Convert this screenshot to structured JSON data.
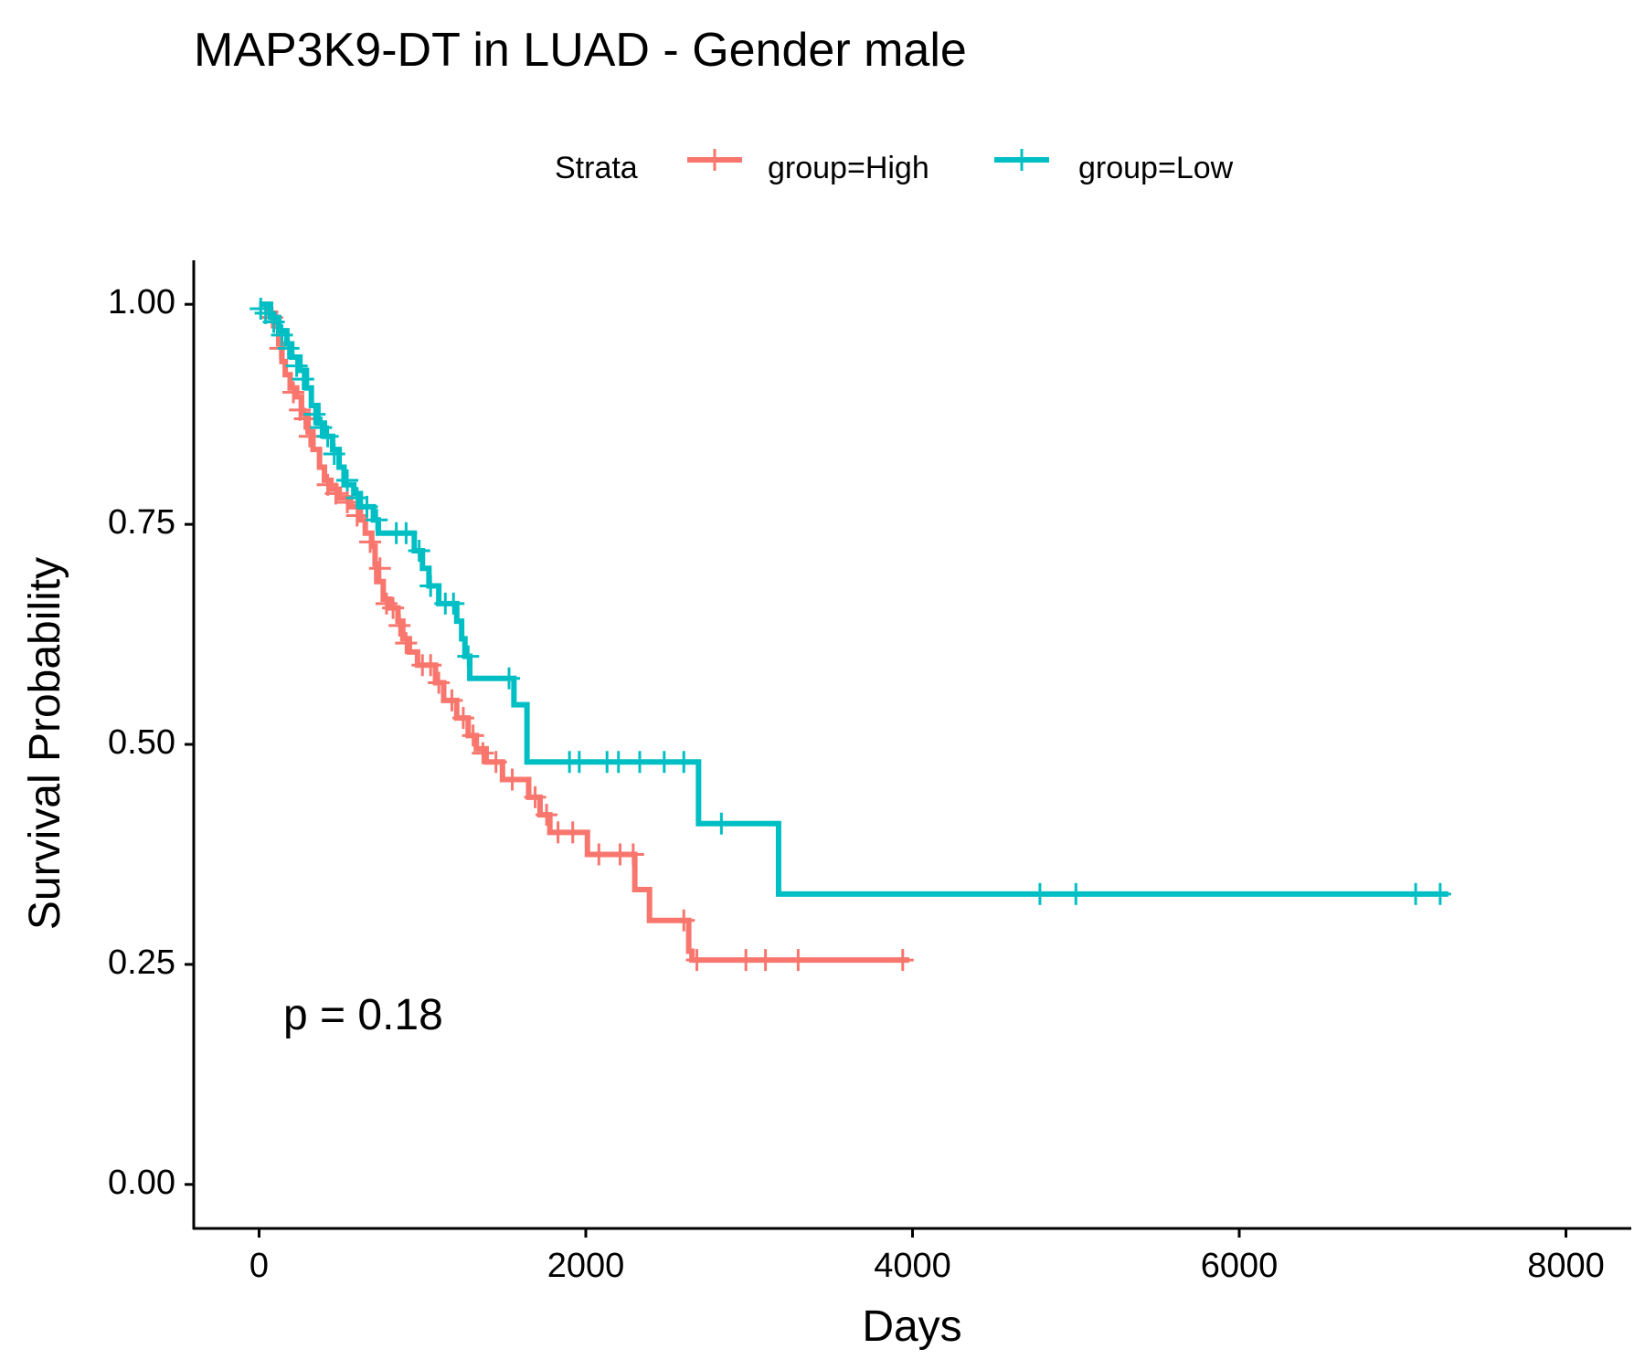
{
  "chart_data": {
    "type": "line",
    "title": "MAP3K9-DT in LUAD - Gender male",
    "xlabel": "Days",
    "ylabel": "Survival Probability",
    "xlim": [
      -400,
      8400
    ],
    "ylim": [
      -0.05,
      1.05
    ],
    "xticks": [
      0,
      2000,
      4000,
      6000,
      8000
    ],
    "yticks": [
      0.0,
      0.25,
      0.5,
      0.75,
      1.0
    ],
    "ytick_labels": [
      "0.00",
      "0.25",
      "0.50",
      "0.75",
      "1.00"
    ],
    "xtick_labels": [
      "0",
      "2000",
      "4000",
      "6000",
      "8000"
    ],
    "grid": false,
    "legend_title": "Strata",
    "legend_position": "top",
    "annotation": "p = 0.18",
    "series": [
      {
        "name": "group=High",
        "color": "#F8766D",
        "steps": [
          [
            0,
            1.0
          ],
          [
            60,
            0.99
          ],
          [
            100,
            0.975
          ],
          [
            120,
            0.955
          ],
          [
            140,
            0.935
          ],
          [
            160,
            0.92
          ],
          [
            190,
            0.905
          ],
          [
            230,
            0.895
          ],
          [
            260,
            0.875
          ],
          [
            300,
            0.855
          ],
          [
            330,
            0.835
          ],
          [
            370,
            0.815
          ],
          [
            400,
            0.8
          ],
          [
            440,
            0.79
          ],
          [
            490,
            0.78
          ],
          [
            560,
            0.77
          ],
          [
            620,
            0.755
          ],
          [
            650,
            0.74
          ],
          [
            690,
            0.725
          ],
          [
            710,
            0.705
          ],
          [
            720,
            0.685
          ],
          [
            760,
            0.665
          ],
          [
            800,
            0.655
          ],
          [
            850,
            0.64
          ],
          [
            880,
            0.62
          ],
          [
            920,
            0.605
          ],
          [
            970,
            0.59
          ],
          [
            1080,
            0.57
          ],
          [
            1130,
            0.55
          ],
          [
            1210,
            0.53
          ],
          [
            1280,
            0.51
          ],
          [
            1330,
            0.495
          ],
          [
            1390,
            0.48
          ],
          [
            1490,
            0.46
          ],
          [
            1650,
            0.44
          ],
          [
            1720,
            0.42
          ],
          [
            1780,
            0.4
          ],
          [
            2010,
            0.375
          ],
          [
            2300,
            0.335
          ],
          [
            2390,
            0.3
          ],
          [
            2630,
            0.265
          ],
          [
            2650,
            0.255
          ],
          [
            3980,
            0.255
          ]
        ],
        "censor": [
          [
            80,
            0.985
          ],
          [
            130,
            0.95
          ],
          [
            210,
            0.9
          ],
          [
            250,
            0.88
          ],
          [
            280,
            0.87
          ],
          [
            310,
            0.85
          ],
          [
            420,
            0.795
          ],
          [
            470,
            0.785
          ],
          [
            540,
            0.775
          ],
          [
            600,
            0.76
          ],
          [
            680,
            0.73
          ],
          [
            740,
            0.7
          ],
          [
            780,
            0.66
          ],
          [
            820,
            0.655
          ],
          [
            860,
            0.635
          ],
          [
            900,
            0.615
          ],
          [
            1000,
            0.59
          ],
          [
            1050,
            0.59
          ],
          [
            1100,
            0.57
          ],
          [
            1180,
            0.55
          ],
          [
            1250,
            0.53
          ],
          [
            1310,
            0.51
          ],
          [
            1370,
            0.49
          ],
          [
            1450,
            0.48
          ],
          [
            1550,
            0.46
          ],
          [
            1690,
            0.44
          ],
          [
            1760,
            0.42
          ],
          [
            1830,
            0.4
          ],
          [
            1920,
            0.4
          ],
          [
            2080,
            0.375
          ],
          [
            2210,
            0.375
          ],
          [
            2290,
            0.375
          ],
          [
            2600,
            0.3
          ],
          [
            2680,
            0.255
          ],
          [
            2980,
            0.255
          ],
          [
            3100,
            0.255
          ],
          [
            3300,
            0.255
          ],
          [
            3940,
            0.255
          ]
        ]
      },
      {
        "name": "group=Low",
        "color": "#00BFC4",
        "steps": [
          [
            0,
            1.0
          ],
          [
            70,
            0.985
          ],
          [
            120,
            0.97
          ],
          [
            170,
            0.955
          ],
          [
            200,
            0.94
          ],
          [
            250,
            0.925
          ],
          [
            290,
            0.905
          ],
          [
            320,
            0.885
          ],
          [
            360,
            0.865
          ],
          [
            400,
            0.85
          ],
          [
            450,
            0.835
          ],
          [
            490,
            0.815
          ],
          [
            520,
            0.795
          ],
          [
            580,
            0.785
          ],
          [
            620,
            0.77
          ],
          [
            700,
            0.755
          ],
          [
            730,
            0.74
          ],
          [
            950,
            0.72
          ],
          [
            1000,
            0.7
          ],
          [
            1040,
            0.68
          ],
          [
            1100,
            0.66
          ],
          [
            1210,
            0.64
          ],
          [
            1240,
            0.62
          ],
          [
            1260,
            0.6
          ],
          [
            1290,
            0.575
          ],
          [
            1560,
            0.545
          ],
          [
            1640,
            0.48
          ],
          [
            2690,
            0.41
          ],
          [
            3180,
            0.33
          ],
          [
            7280,
            0.33
          ]
        ],
        "censor": [
          [
            10,
            0.995
          ],
          [
            40,
            0.99
          ],
          [
            90,
            0.98
          ],
          [
            140,
            0.965
          ],
          [
            180,
            0.95
          ],
          [
            230,
            0.93
          ],
          [
            270,
            0.915
          ],
          [
            340,
            0.875
          ],
          [
            380,
            0.86
          ],
          [
            420,
            0.85
          ],
          [
            460,
            0.83
          ],
          [
            540,
            0.8
          ],
          [
            600,
            0.78
          ],
          [
            660,
            0.77
          ],
          [
            720,
            0.755
          ],
          [
            840,
            0.74
          ],
          [
            900,
            0.74
          ],
          [
            980,
            0.72
          ],
          [
            1050,
            0.68
          ],
          [
            1140,
            0.66
          ],
          [
            1190,
            0.66
          ],
          [
            1280,
            0.6
          ],
          [
            1530,
            0.575
          ],
          [
            1900,
            0.48
          ],
          [
            1960,
            0.48
          ],
          [
            2130,
            0.48
          ],
          [
            2200,
            0.48
          ],
          [
            2330,
            0.48
          ],
          [
            2480,
            0.48
          ],
          [
            2600,
            0.48
          ],
          [
            2830,
            0.41
          ],
          [
            4780,
            0.33
          ],
          [
            5000,
            0.33
          ],
          [
            7080,
            0.33
          ],
          [
            7230,
            0.33
          ]
        ]
      }
    ]
  }
}
